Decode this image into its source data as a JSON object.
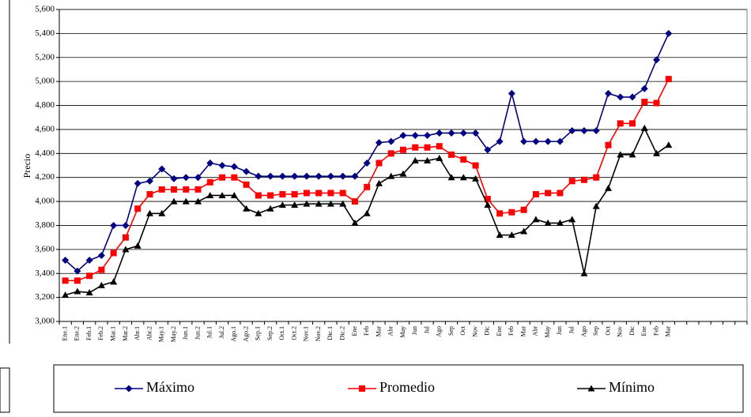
{
  "chart_data": {
    "type": "line",
    "y_label": "Precio",
    "categories": [
      "Ene.1",
      "Ene.2",
      "Feb.1",
      "Feb.2",
      "Mar.1",
      "Mar.2",
      "Abr.1",
      "Abr.2",
      "May.1",
      "May.2",
      "Jun.1",
      "Jun.2",
      "Jul.1",
      "Jul.2",
      "Ago.1",
      "Ago.2",
      "Sep.1",
      "Sep.2",
      "Oct.1",
      "Oct.2",
      "Nov.1",
      "Nov.2",
      "Dic.1",
      "Dic.2",
      "Ene",
      "Feb",
      "Mar",
      "Abr",
      "May",
      "Jun",
      "Jul",
      "Ago",
      "Sep",
      "Oct",
      "Nov",
      "Dic",
      "Ene",
      "Feb",
      "Mar",
      "Abr",
      "May",
      "Jun",
      "Jul",
      "Ago",
      "Sep",
      "Oct",
      "Nov",
      "Dic",
      "Ene",
      "Feb",
      "Mar",
      null,
      null,
      null,
      null,
      null,
      null
    ],
    "series": [
      {
        "name": "Máximo",
        "color": "#000080",
        "marker": "diamond",
        "values": [
          3510,
          3420,
          3510,
          3550,
          3800,
          3800,
          4150,
          4170,
          4270,
          4190,
          4200,
          4200,
          4320,
          4300,
          4290,
          4250,
          4210,
          4210,
          4210,
          4210,
          4210,
          4210,
          4210,
          4210,
          4210,
          4320,
          4490,
          4500,
          4550,
          4550,
          4550,
          4570,
          4570,
          4570,
          4570,
          4430,
          4500,
          4900,
          4500,
          4500,
          4500,
          4500,
          4590,
          4590,
          4590,
          4900,
          4870,
          4870,
          4940,
          5180,
          5400,
          null,
          null,
          null,
          null,
          null,
          null
        ]
      },
      {
        "name": "Promedio",
        "color": "#ff0000",
        "marker": "square",
        "values": [
          3340,
          3340,
          3380,
          3430,
          3570,
          3700,
          3940,
          4060,
          4100,
          4100,
          4100,
          4100,
          4160,
          4200,
          4200,
          4140,
          4050,
          4050,
          4060,
          4060,
          4070,
          4070,
          4070,
          4070,
          4000,
          4120,
          4320,
          4400,
          4430,
          4450,
          4450,
          4460,
          4390,
          4350,
          4300,
          4020,
          3900,
          3910,
          3930,
          4060,
          4070,
          4070,
          4170,
          4180,
          4200,
          4470,
          4650,
          4650,
          4830,
          4820,
          5020,
          null,
          null,
          null,
          null,
          null,
          null
        ]
      },
      {
        "name": "Mínimo",
        "color": "#000000",
        "marker": "triangle",
        "values": [
          3220,
          3250,
          3240,
          3300,
          3330,
          3600,
          3630,
          3900,
          3900,
          4000,
          4000,
          4000,
          4050,
          4050,
          4050,
          3940,
          3900,
          3940,
          3970,
          3970,
          3980,
          3980,
          3980,
          3980,
          3820,
          3900,
          4150,
          4210,
          4230,
          4340,
          4340,
          4360,
          4200,
          4200,
          4190,
          3970,
          3720,
          3720,
          3750,
          3850,
          3820,
          3820,
          3850,
          3400,
          3960,
          4110,
          4390,
          4390,
          4610,
          4400,
          4470,
          null,
          null,
          null,
          null,
          null,
          null
        ]
      }
    ],
    "ylim": [
      3000,
      5600
    ],
    "yticks": [
      {
        "value": 3000,
        "label": "3,000"
      },
      {
        "value": 3200,
        "label": "3,200"
      },
      {
        "value": 3400,
        "label": "3,400"
      },
      {
        "value": 3600,
        "label": "3,600"
      },
      {
        "value": 3800,
        "label": "3,800"
      },
      {
        "value": 4000,
        "label": "4,000"
      },
      {
        "value": 4200,
        "label": "4,200"
      },
      {
        "value": 4400,
        "label": "4,400"
      },
      {
        "value": 4600,
        "label": "4,600"
      },
      {
        "value": 4800,
        "label": "4,800"
      },
      {
        "value": 5000,
        "label": "5,000"
      },
      {
        "value": 5200,
        "label": "5,200"
      },
      {
        "value": 5400,
        "label": "5,400"
      },
      {
        "value": 5600,
        "label": "5,600"
      }
    ],
    "grid": true,
    "legend": "bottom"
  }
}
